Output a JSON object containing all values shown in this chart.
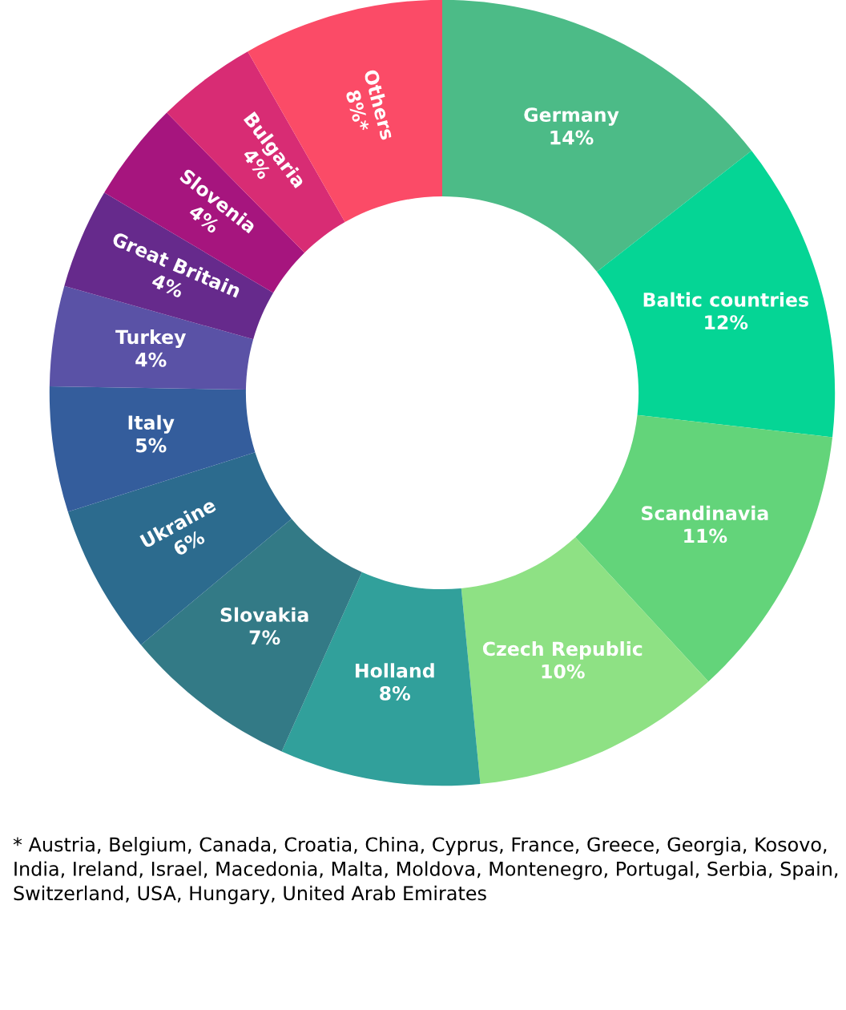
{
  "chart_data": {
    "type": "donut",
    "categories": [
      "Germany",
      "Baltic countries",
      "Scandinavia",
      "Czech Republic",
      "Holland",
      "Slovakia",
      "Ukraine",
      "Italy",
      "Turkey",
      "Great Britain",
      "Slovenia",
      "Bulgaria",
      "Others"
    ],
    "values": [
      14,
      12,
      11,
      10,
      8,
      7,
      6,
      5,
      4,
      4,
      4,
      4,
      8
    ],
    "value_labels": [
      "14%",
      "12%",
      "11%",
      "10%",
      "8%",
      "7%",
      "6%",
      "5%",
      "4%",
      "4%",
      "4%",
      "4%",
      "8%*"
    ],
    "colors": [
      "#4cbb87",
      "#05d595",
      "#63d47a",
      "#8ee184",
      "#31a09b",
      "#337a86",
      "#2c6b8e",
      "#345d9c",
      "#5a52a6",
      "#662a8c",
      "#a6157e",
      "#d82c74",
      "#fb4b67"
    ],
    "legend": false,
    "annotations": [
      "* Austria, Belgium, Canada, Croatia, China, Cyprus, France, Greece, Georgia, Kosovo, India, Ireland, Israel, Macedonia, Malta, Moldova, Montenegro, Portugal, Serbia, Spain, Switzerland, USA, Hungary, United Arab Emirates"
    ]
  }
}
